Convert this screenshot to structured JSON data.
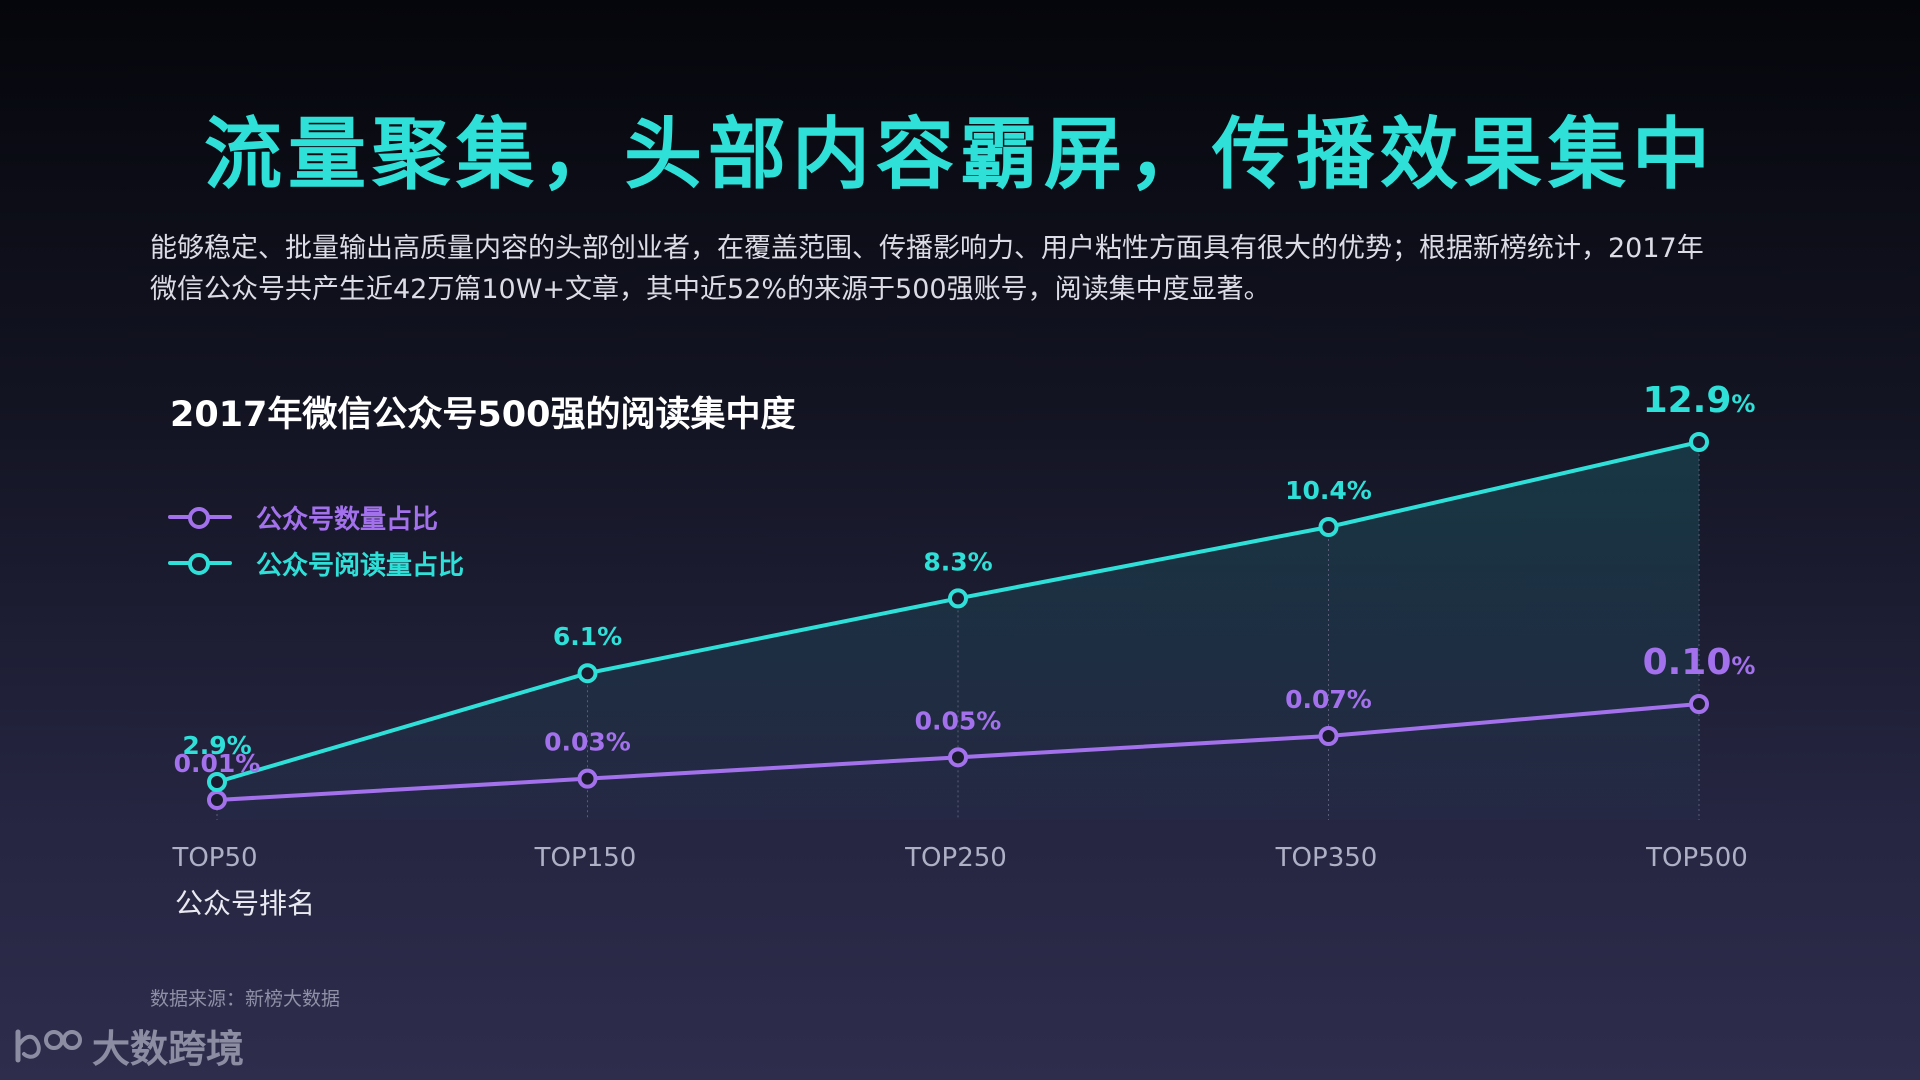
{
  "headline": "流量聚集，头部内容霸屏，传播效果集中",
  "intro_line1": "能够稳定、批量输出高质量内容的头部创业者，在覆盖范围、传播影响力、用户粘性方面具有很大的优势；根据新榜统计，2017年",
  "intro_line2": "微信公众号共产生近42万篇10W+文章，其中近52%的来源于500强账号，阅读集中度显著。",
  "source": "数据来源：新榜大数据",
  "logo_text": "大数跨境",
  "colors": {
    "teal": "#2fe0d8",
    "purple": "#a371ec"
  },
  "chart_data": {
    "type": "line",
    "title": "2017年微信公众号500强的阅读集中度",
    "xlabel": "公众号排名",
    "ylabel": "",
    "categories": [
      "TOP50",
      "TOP150",
      "TOP250",
      "TOP350",
      "TOP500"
    ],
    "series": [
      {
        "name": "公众号数量占比",
        "values": [
          0.01,
          0.03,
          0.05,
          0.07,
          0.1
        ],
        "labels": [
          "0.01%",
          "0.03%",
          "0.05%",
          "0.07%",
          "0.10%"
        ],
        "color": "#a371ec"
      },
      {
        "name": "公众号阅读量占比",
        "values": [
          2.9,
          6.1,
          8.3,
          10.4,
          12.9
        ],
        "labels": [
          "2.9%",
          "6.1%",
          "8.3%",
          "10.4%",
          "12.9%"
        ],
        "color": "#2fe0d8"
      }
    ],
    "legend": "top-left",
    "grid": false
  }
}
